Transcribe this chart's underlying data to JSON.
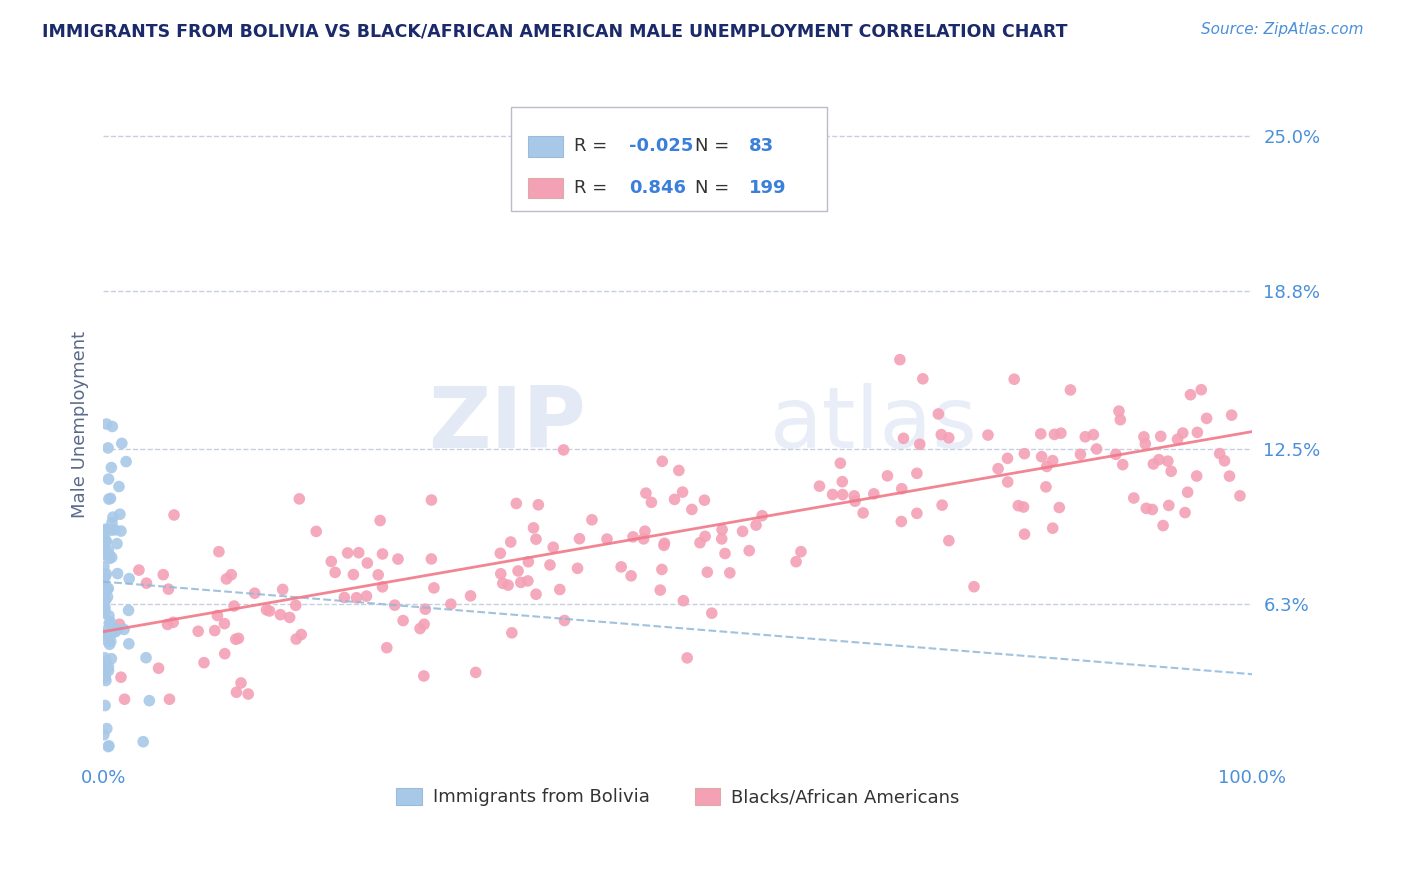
{
  "title": "IMMIGRANTS FROM BOLIVIA VS BLACK/AFRICAN AMERICAN MALE UNEMPLOYMENT CORRELATION CHART",
  "source_text": "Source: ZipAtlas.com",
  "watermark_zip": "ZIP",
  "watermark_atlas": "atlas",
  "ylabel": "Male Unemployment",
  "xlim": [
    0.0,
    100.0
  ],
  "ylim": [
    0.0,
    27.0
  ],
  "yticks": [
    6.3,
    12.5,
    18.8,
    25.0
  ],
  "ytick_labels": [
    "6.3%",
    "12.5%",
    "18.8%",
    "25.0%"
  ],
  "xtick_labels": [
    "0.0%",
    "100.0%"
  ],
  "blue_R": -0.025,
  "blue_N": 83,
  "pink_R": 0.846,
  "pink_N": 199,
  "blue_color": "#a8c8e8",
  "pink_color": "#f4a0b5",
  "blue_line_color": "#90b8d8",
  "pink_line_color": "#f07888",
  "title_color": "#1a2a6a",
  "axis_label_color": "#5a6a8a",
  "tick_color": "#4a90d9",
  "legend_R_color": "#333333",
  "legend_val_color": "#3a7fd9",
  "grid_color": "#c8d0e0",
  "background_color": "#ffffff",
  "legend_blue_label": "Immigrants from Bolivia",
  "legend_pink_label": "Blacks/African Americans",
  "blue_trend_start_y": 7.2,
  "blue_trend_end_y": 3.5,
  "pink_trend_start_y": 5.2,
  "pink_trend_end_y": 13.2
}
